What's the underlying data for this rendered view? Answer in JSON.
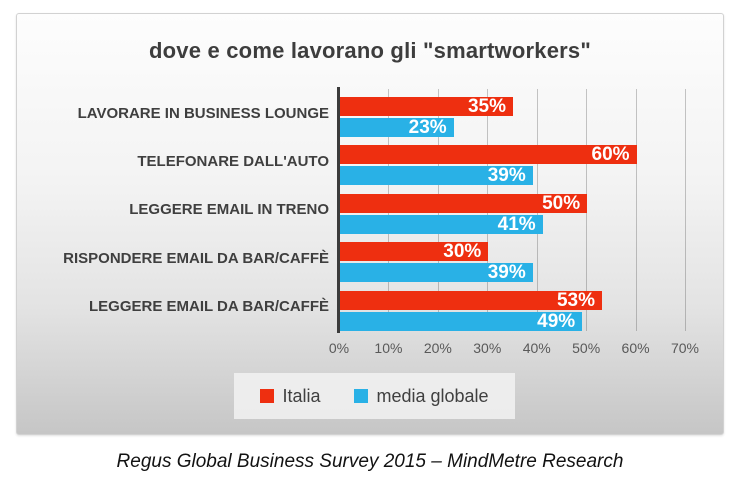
{
  "title": "dove e come lavorano gli \"smartworkers\"",
  "caption": "Regus Global Business Survey 2015 – MindMetre Research",
  "colors": {
    "italia": "#ee2f10",
    "media_globale": "#29b1e6",
    "title_text": "#3d3d3d",
    "category_text": "#3f3f3f",
    "axis_text": "#595959",
    "value_label_text": "#ffffff"
  },
  "chart_data": {
    "type": "bar",
    "orientation": "horizontal",
    "title": "dove e come lavorano gli \"smartworkers\"",
    "categories": [
      "LAVORARE IN BUSINESS LOUNGE",
      "TELEFONARE DALL'AUTO",
      "LEGGERE EMAIL IN TRENO",
      "RISPONDERE EMAIL DA BAR/CAFFÈ",
      "LEGGERE EMAIL DA BAR/CAFFÈ"
    ],
    "series": [
      {
        "name": "Italia",
        "color": "#ee2f10",
        "values": [
          35,
          60,
          50,
          30,
          53
        ],
        "labels": [
          "35%",
          "60%",
          "50%",
          "30%",
          "53%"
        ]
      },
      {
        "name": "media globale",
        "color": "#29b1e6",
        "values": [
          23,
          39,
          41,
          39,
          49
        ],
        "labels": [
          "23%",
          "39%",
          "41%",
          "39%",
          "49%"
        ]
      }
    ],
    "x_ticks": [
      "0%",
      "10%",
      "20%",
      "30%",
      "40%",
      "50%",
      "60%",
      "70%"
    ],
    "xlim": [
      0,
      70
    ],
    "xlabel": "",
    "ylabel": "",
    "grid": "vertical",
    "legend_position": "bottom"
  }
}
